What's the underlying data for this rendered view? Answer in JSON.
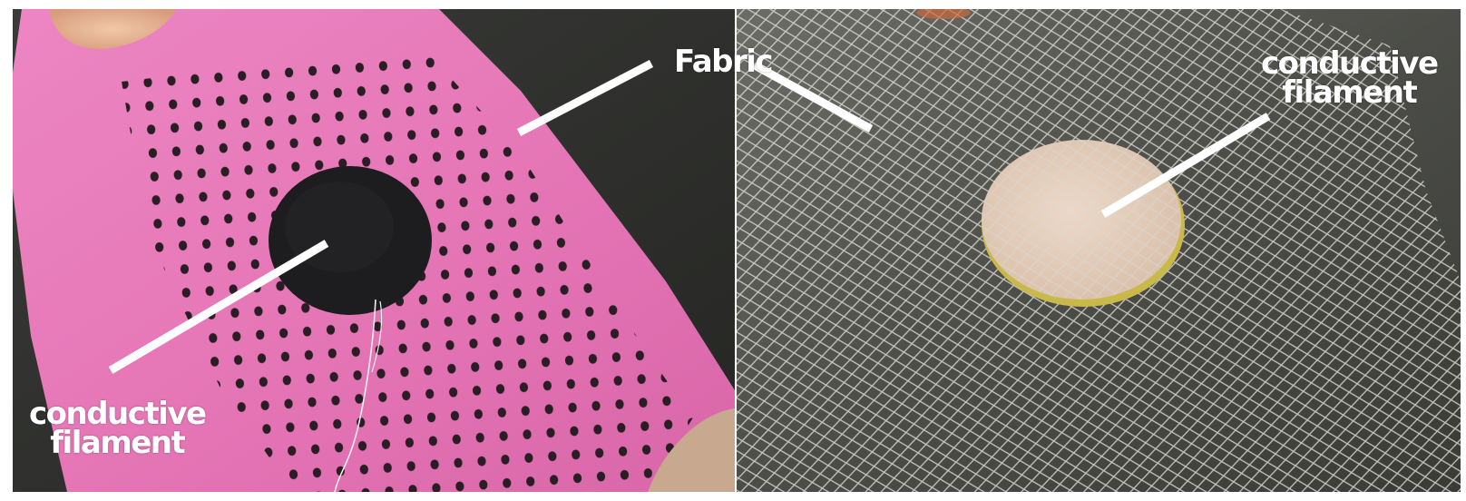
{
  "labels": {
    "fabric": "Fabric",
    "left_filament_line1": "conductive",
    "left_filament_line2": "filament",
    "right_filament_line1": "conductive",
    "right_filament_line2": "filament"
  },
  "colors": {
    "pink_fabric": "#e779b8",
    "dark_background": "#2d2e2b",
    "black_pad": "#1d1d1f",
    "tan_pad": "#e3cdbd",
    "mesh_white": "#dcdad3",
    "label_white": "#ffffff"
  },
  "panels": [
    {
      "name": "left-photo",
      "subject": "pink fabric with black dot pattern and black circular conductive filament pad"
    },
    {
      "name": "right-photo",
      "subject": "white tulle mesh fabric with tan circular conductive filament pad"
    }
  ]
}
